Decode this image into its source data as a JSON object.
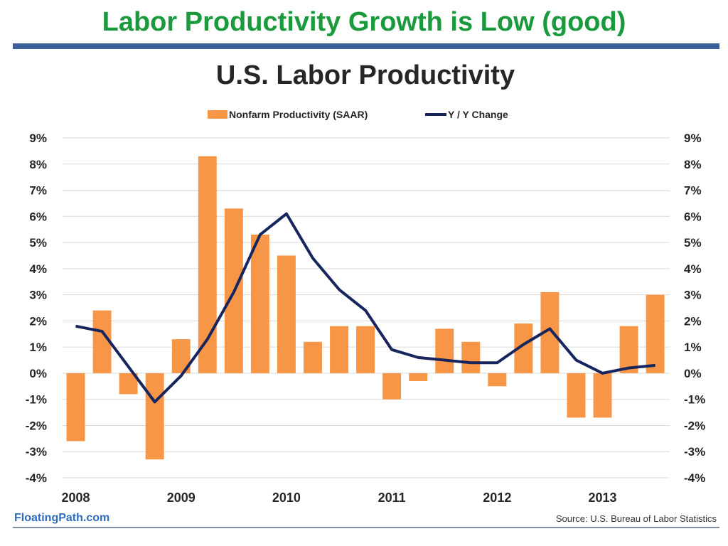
{
  "slide": {
    "title": "Labor Productivity Growth is Low (good)",
    "brand": "FloatingPath.com",
    "source": "Source: U.S. Bureau of Labor Statistics",
    "colors": {
      "title": "#1a9a3c",
      "rule": "#3d5f97",
      "brand": "#2d6bbf"
    }
  },
  "chart_data": {
    "type": "bar",
    "title": "U.S. Labor Productivity",
    "legend_position": "top-center",
    "grid": true,
    "x_ticks": [
      "2008",
      "2009",
      "2010",
      "2011",
      "2012",
      "2013"
    ],
    "ylim": [
      -4,
      9
    ],
    "y_ticks_left": [
      "9%",
      "8%",
      "7%",
      "6%",
      "5%",
      "4%",
      "3%",
      "2%",
      "1%",
      "0%",
      "-1%",
      "-2%",
      "-3%",
      "-4%"
    ],
    "y_ticks_right": [
      "9%",
      "8%",
      "7%",
      "6%",
      "5%",
      "4%",
      "3%",
      "2%",
      "1%",
      "0%",
      "-1%",
      "-2%",
      "-3%",
      "-4%"
    ],
    "series": [
      {
        "name": "Nonfarm Productivity (SAAR)",
        "type": "bar",
        "color": "#f79646",
        "x": [
          "2008 Q1",
          "2008 Q2",
          "2008 Q3",
          "2008 Q4",
          "2009 Q1",
          "2009 Q2",
          "2009 Q3",
          "2009 Q4",
          "2010 Q1",
          "2010 Q2",
          "2010 Q3",
          "2010 Q4",
          "2011 Q1",
          "2011 Q2",
          "2011 Q3",
          "2011 Q4",
          "2012 Q1",
          "2012 Q2",
          "2012 Q3",
          "2012 Q4",
          "2013 Q1",
          "2013 Q2",
          "2013 Q3"
        ],
        "values": [
          -2.6,
          2.4,
          -0.8,
          -3.3,
          1.3,
          8.3,
          6.3,
          5.3,
          4.5,
          1.2,
          1.8,
          1.8,
          -1.0,
          -0.3,
          1.7,
          1.2,
          -0.5,
          1.9,
          3.1,
          -1.7,
          -1.7,
          1.8,
          3.0
        ]
      },
      {
        "name": "Y / Y Change",
        "type": "line",
        "color": "#17255e",
        "x": [
          "2008 Q1",
          "2008 Q2",
          "2008 Q3",
          "2008 Q4",
          "2009 Q1",
          "2009 Q2",
          "2009 Q3",
          "2009 Q4",
          "2010 Q1",
          "2010 Q2",
          "2010 Q3",
          "2010 Q4",
          "2011 Q1",
          "2011 Q2",
          "2011 Q3",
          "2011 Q4",
          "2012 Q1",
          "2012 Q2",
          "2012 Q3",
          "2012 Q4",
          "2013 Q1",
          "2013 Q2",
          "2013 Q3"
        ],
        "values": [
          1.8,
          1.6,
          null,
          -1.1,
          -0.1,
          1.3,
          3.1,
          5.3,
          6.1,
          4.4,
          3.2,
          2.4,
          0.9,
          0.6,
          0.5,
          0.4,
          0.4,
          1.1,
          1.7,
          0.5,
          0.0,
          0.2,
          0.3
        ]
      }
    ]
  }
}
